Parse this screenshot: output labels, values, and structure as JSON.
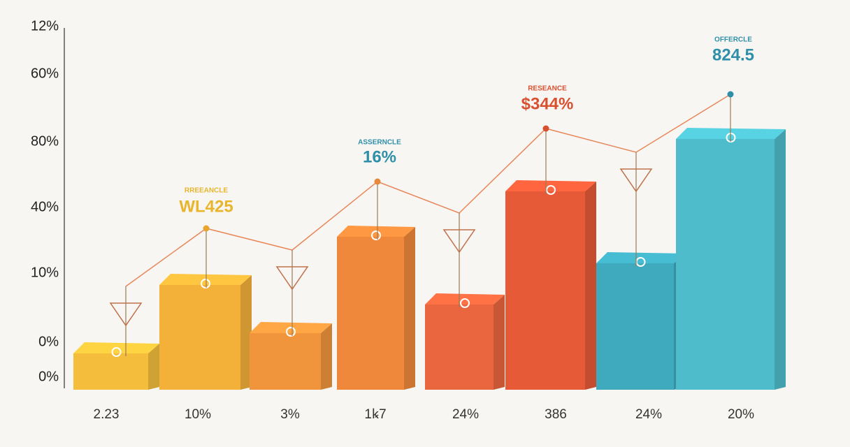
{
  "y_labels": [
    "12%",
    "60%",
    "80%",
    "40%",
    "10%",
    "0%",
    "0%"
  ],
  "x_labels": [
    "2.23",
    "10%",
    "3%",
    "1ꝃ7",
    "24%",
    "386",
    "24%",
    "20%"
  ],
  "callouts": [
    {
      "caption": "RREEANCLE",
      "value": "WL425",
      "color": "#e8b52c"
    },
    {
      "caption": "ASSERNCLE",
      "value": "16%",
      "color": "#2f8fa8"
    },
    {
      "caption": "RESEANCE",
      "value": "$344%",
      "color": "#d9502f"
    },
    {
      "caption": "OFFERCLE",
      "value": "824.5",
      "color": "#2f8fa8"
    }
  ]
}
